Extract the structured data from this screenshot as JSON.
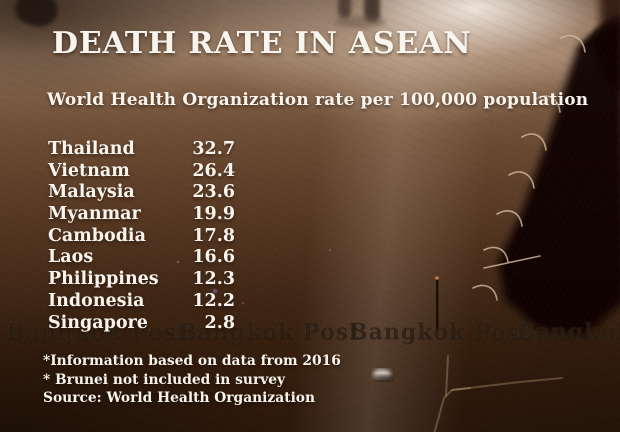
{
  "title": "DEATH RATE IN ASEAN",
  "subtitle": "World Health Organization rate per 100,000 population",
  "table": {
    "rows": [
      {
        "country": "Thailand",
        "rate": "32.7"
      },
      {
        "country": "Vietnam",
        "rate": "26.4"
      },
      {
        "country": "Malaysia",
        "rate": "23.6"
      },
      {
        "country": "Myanmar",
        "rate": "19.9"
      },
      {
        "country": "Cambodia",
        "rate": "17.8"
      },
      {
        "country": "Laos",
        "rate": "16.6"
      },
      {
        "country": "Philippines",
        "rate": "12.3"
      },
      {
        "country": "Indonesia",
        "rate": "12.2"
      },
      {
        "country": "Singapore",
        "rate": "2.8"
      }
    ]
  },
  "footnotes": [
    "*Information based on data from 2016",
    "* Brunei not included in survey",
    "Source: World Health Organization"
  ],
  "watermark": {
    "text": "Bangkok Post"
  },
  "colors": {
    "text": "#f9f5ee",
    "watermark": "#140b05",
    "road_light": "#96795f",
    "road_dark": "#2c180a"
  },
  "chart_data": {
    "type": "table",
    "title": "DEATH RATE IN ASEAN",
    "subtitle": "World Health Organization rate per 100,000 population",
    "categories": [
      "Thailand",
      "Vietnam",
      "Malaysia",
      "Myanmar",
      "Cambodia",
      "Laos",
      "Philippines",
      "Indonesia",
      "Singapore"
    ],
    "values": [
      32.7,
      26.4,
      23.6,
      19.9,
      17.8,
      16.6,
      12.3,
      12.2,
      2.8
    ],
    "unit": "deaths per 100,000 population",
    "data_year": "2016",
    "source": "World Health Organization",
    "notes": [
      "Information based on data from 2016",
      "Brunei not included in survey"
    ],
    "legend": false,
    "grid": false
  }
}
